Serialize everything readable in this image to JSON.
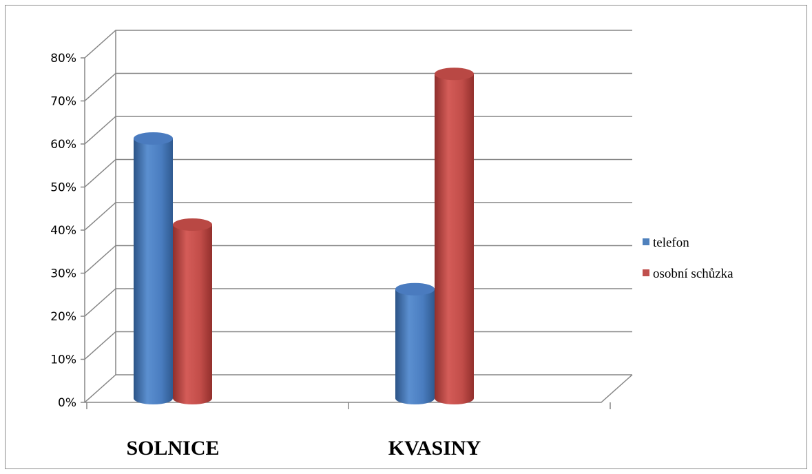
{
  "chart_data": {
    "type": "bar",
    "categories": [
      "SOLNICE",
      "KVASINY"
    ],
    "series": [
      {
        "name": "telefon",
        "values": [
          0.6,
          0.25
        ],
        "color": "#4f81bd"
      },
      {
        "name": "osobní schůzka",
        "values": [
          0.4,
          0.75
        ],
        "color": "#c0504d"
      }
    ],
    "ylim": [
      0,
      0.8
    ],
    "y_ticks": [
      "0%",
      "10%",
      "20%",
      "30%",
      "40%",
      "50%",
      "60%",
      "70%",
      "80%"
    ],
    "grid": true,
    "legend_position": "right",
    "style": "3d-cylinder"
  }
}
